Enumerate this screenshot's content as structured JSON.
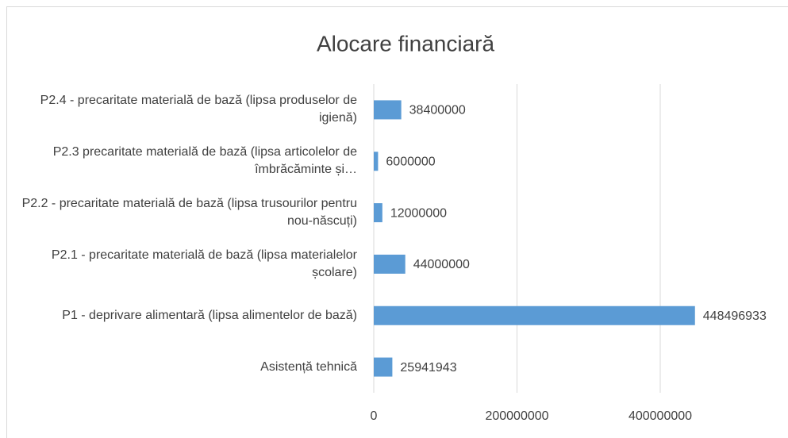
{
  "chart_data": {
    "type": "barh",
    "title": "Alocare financiară",
    "categories": [
      "P2.4 - precaritate materială de bază (lipsa produselor de igienă)",
      "P2.3 precaritate materială de bază (lipsa articolelor de îmbrăcăminte și…",
      "P2.2 - precaritate materială de bază (lipsa trusourilor pentru nou-născuți)",
      "P2.1 - precaritate materială de bază (lipsa materialelor școlare)",
      "P1 - deprivare alimentară (lipsa alimentelor de bază)",
      "Asistență tehnică"
    ],
    "values": [
      38400000,
      6000000,
      12000000,
      44000000,
      448496933,
      25941943
    ],
    "color": "#5b9bd5",
    "xlim": [
      0,
      600000000
    ],
    "xticks": [
      0,
      200000000,
      400000000
    ],
    "grid": true
  }
}
